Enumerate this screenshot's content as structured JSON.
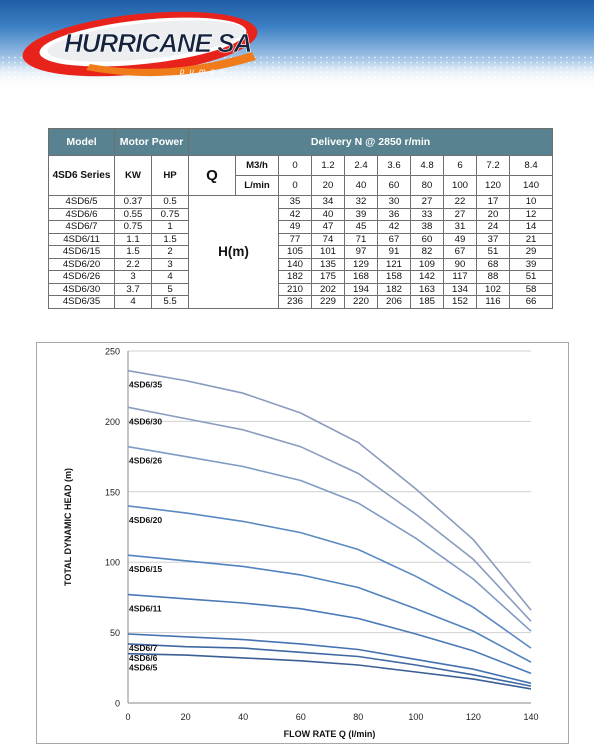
{
  "brand": {
    "name": "HURRICANE SA",
    "tagline": "pumps"
  },
  "table": {
    "header": {
      "model": "Model",
      "motor_power": "Motor Power",
      "delivery": "Delivery N @ 2850 r/min"
    },
    "series_label": "4SD6 Series",
    "kw": "KW",
    "hp": "HP",
    "q": "Q",
    "m3h_label": "M3/h",
    "lmin_label": "L/min",
    "h_label": "H(m)",
    "m3h": [
      "0",
      "1.2",
      "2.4",
      "3.6",
      "4.8",
      "6",
      "7.2",
      "8.4"
    ],
    "lmin": [
      "0",
      "20",
      "40",
      "60",
      "80",
      "100",
      "120",
      "140"
    ],
    "rows": [
      {
        "model": "4SD6/5",
        "kw": "0.37",
        "hp": "0.5",
        "h": [
          "35",
          "34",
          "32",
          "30",
          "27",
          "22",
          "17",
          "10"
        ]
      },
      {
        "model": "4SD6/6",
        "kw": "0.55",
        "hp": "0.75",
        "h": [
          "42",
          "40",
          "39",
          "36",
          "33",
          "27",
          "20",
          "12"
        ]
      },
      {
        "model": "4SD6/7",
        "kw": "0.75",
        "hp": "1",
        "h": [
          "49",
          "47",
          "45",
          "42",
          "38",
          "31",
          "24",
          "14"
        ]
      },
      {
        "model": "4SD6/11",
        "kw": "1.1",
        "hp": "1.5",
        "h": [
          "77",
          "74",
          "71",
          "67",
          "60",
          "49",
          "37",
          "21"
        ]
      },
      {
        "model": "4SD6/15",
        "kw": "1.5",
        "hp": "2",
        "h": [
          "105",
          "101",
          "97",
          "91",
          "82",
          "67",
          "51",
          "29"
        ]
      },
      {
        "model": "4SD6/20",
        "kw": "2.2",
        "hp": "3",
        "h": [
          "140",
          "135",
          "129",
          "121",
          "109",
          "90",
          "68",
          "39"
        ]
      },
      {
        "model": "4SD6/26",
        "kw": "3",
        "hp": "4",
        "h": [
          "182",
          "175",
          "168",
          "158",
          "142",
          "117",
          "88",
          "51"
        ]
      },
      {
        "model": "4SD6/30",
        "kw": "3.7",
        "hp": "5",
        "h": [
          "210",
          "202",
          "194",
          "182",
          "163",
          "134",
          "102",
          "58"
        ]
      },
      {
        "model": "4SD6/35",
        "kw": "4",
        "hp": "5.5",
        "h": [
          "236",
          "229",
          "220",
          "206",
          "185",
          "152",
          "116",
          "66"
        ]
      }
    ]
  },
  "chart_data": {
    "type": "line",
    "xlabel": "FLOW RATE Q (l/min)",
    "ylabel": "TOTAL DYNAMIC HEAD (m)",
    "x": [
      0,
      20,
      40,
      60,
      80,
      100,
      120,
      140
    ],
    "xlim": [
      0,
      140
    ],
    "ylim": [
      0,
      250
    ],
    "xticks": [
      0,
      20,
      40,
      60,
      80,
      100,
      120,
      140
    ],
    "yticks": [
      0,
      50,
      100,
      150,
      200,
      250
    ],
    "grid": true,
    "series": [
      {
        "name": "4SD6/5",
        "values": [
          35,
          34,
          32,
          30,
          27,
          22,
          17,
          10
        ],
        "color": "#3a5f95"
      },
      {
        "name": "4SD6/6",
        "values": [
          42,
          40,
          39,
          36,
          33,
          27,
          20,
          12
        ],
        "color": "#3f68a3"
      },
      {
        "name": "4SD6/7",
        "values": [
          49,
          47,
          45,
          42,
          38,
          31,
          24,
          14
        ],
        "color": "#4573b2"
      },
      {
        "name": "4SD6/11",
        "values": [
          77,
          74,
          71,
          67,
          60,
          49,
          37,
          21
        ],
        "color": "#4a79b8"
      },
      {
        "name": "4SD6/15",
        "values": [
          105,
          101,
          97,
          91,
          82,
          67,
          51,
          29
        ],
        "color": "#5283bf"
      },
      {
        "name": "4SD6/20",
        "values": [
          140,
          135,
          129,
          121,
          109,
          90,
          68,
          39
        ],
        "color": "#5a8ac3"
      },
      {
        "name": "4SD6/26",
        "values": [
          182,
          175,
          168,
          158,
          142,
          117,
          88,
          51
        ],
        "color": "#7f9bc4"
      },
      {
        "name": "4SD6/30",
        "values": [
          210,
          202,
          194,
          182,
          163,
          134,
          102,
          58
        ],
        "color": "#8a9cc0"
      },
      {
        "name": "4SD6/35",
        "values": [
          236,
          229,
          220,
          206,
          185,
          152,
          116,
          66
        ],
        "color": "#8b9bbd"
      }
    ]
  }
}
